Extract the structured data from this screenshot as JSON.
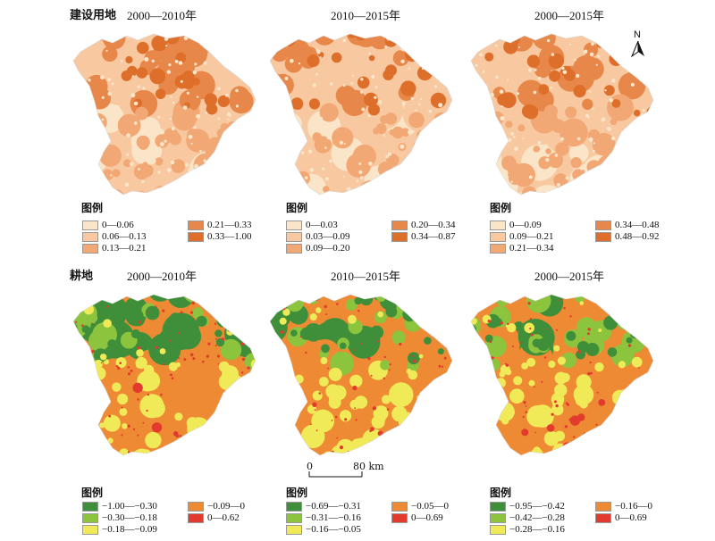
{
  "rows": {
    "construction": {
      "label": "建设用地"
    },
    "cropland": {
      "label": "耕地"
    }
  },
  "periods": [
    "2000—2010年",
    "2010—2015年",
    "2000—2015年"
  ],
  "legend_title": "图例",
  "north_arrow": {
    "label": "N",
    "icon": "north-arrow-icon"
  },
  "scale_bar": {
    "zero": "0",
    "end": "80 km"
  },
  "palettes": {
    "construction": [
      "#fbe5c9",
      "#f8c8a0",
      "#f2a874",
      "#e8874a",
      "#dd6f2a"
    ],
    "cropland": [
      "#3f8f3a",
      "#8cc43e",
      "#f0ea58",
      "#ee8a33",
      "#e23b2e"
    ]
  },
  "legends": {
    "construction": [
      [
        "0—0.06",
        "0.06—0.13",
        "0.13—0.21",
        "0.21—0.33",
        "0.33—1.00"
      ],
      [
        "0—0.03",
        "0.03—0.09",
        "0.09—0.20",
        "0.20—0.34",
        "0.34—0.87"
      ],
      [
        "0—0.09",
        "0.09—0.21",
        "0.21—0.34",
        "0.34—0.48",
        "0.48—0.92"
      ]
    ],
    "cropland": [
      [
        "−1.00—−0.30",
        "−0.30—−0.18",
        "−0.18—−0.09",
        "−0.09—0",
        "0—0.62"
      ],
      [
        "−0.69—−0.31",
        "−0.31—−0.16",
        "−0.16—−0.05",
        "−0.05—0",
        "0—0.69"
      ],
      [
        "−0.95—−0.42",
        "−0.42—−0.28",
        "−0.28—−0.16",
        "−0.16—0",
        "0—0.69"
      ]
    ]
  }
}
